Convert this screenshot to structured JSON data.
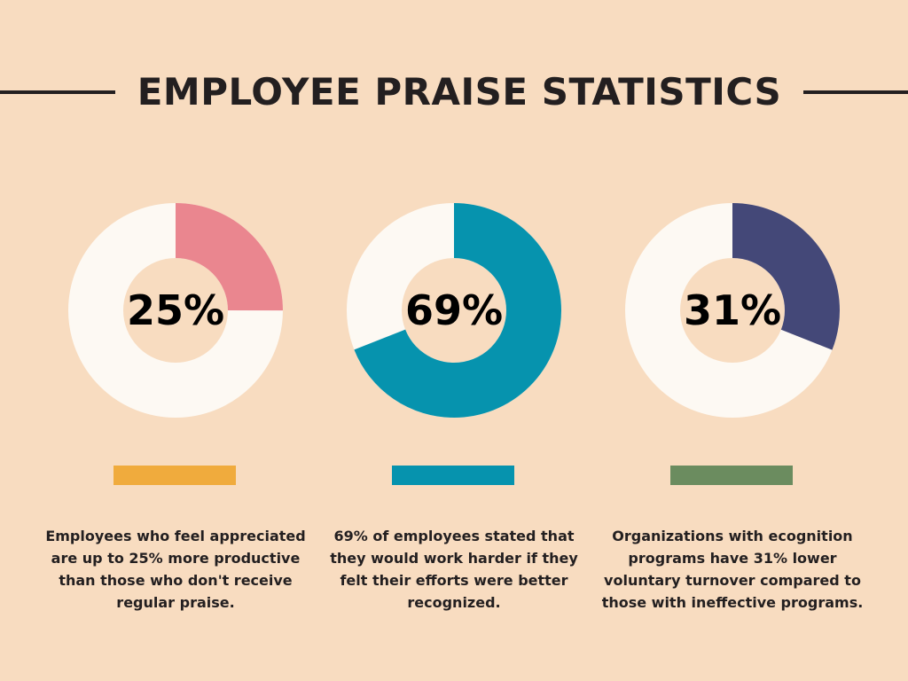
{
  "page": {
    "title": "EMPLOYEE PRAISE STATISTICS",
    "background": "#f8dcc0",
    "text_color": "#231f20",
    "ring_background_color": "#fdf9f3"
  },
  "stats": [
    {
      "value_label": "25%",
      "percent": 25,
      "ring_color": "#ea868f",
      "bar_color": "#f0ab3d",
      "caption": "Employees who feel appreciated are up to 25% more productive than those who don't receive regular praise."
    },
    {
      "value_label": "69%",
      "percent": 69,
      "ring_color": "#0693ae",
      "bar_color": "#0693ae",
      "caption": "69% of employees stated that they would work harder if they felt their efforts were better recognized."
    },
    {
      "value_label": "31%",
      "percent": 31,
      "ring_color": "#444878",
      "bar_color": "#6b8c5f",
      "caption": "Organizations with ecognition programs have 31% lower voluntary turnover compared to those with ineffective programs."
    }
  ],
  "chart_data": [
    {
      "type": "pie",
      "variant": "donut",
      "values": [
        25,
        75
      ],
      "center_label": "25%",
      "colors": [
        "#ea868f",
        "#fdf9f3"
      ]
    },
    {
      "type": "pie",
      "variant": "donut",
      "values": [
        69,
        31
      ],
      "center_label": "69%",
      "colors": [
        "#0693ae",
        "#fdf9f3"
      ]
    },
    {
      "type": "pie",
      "variant": "donut",
      "values": [
        31,
        69
      ],
      "center_label": "31%",
      "colors": [
        "#444878",
        "#fdf9f3"
      ]
    }
  ]
}
